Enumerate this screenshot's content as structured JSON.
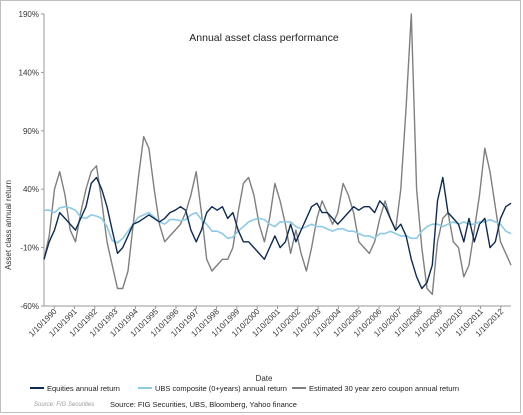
{
  "source_small": "Source: FIG Securities",
  "source_main": "Source: FIG Securities, UBS, Bloomberg, Yahoo finance",
  "chart_data": {
    "type": "line",
    "title": "Annual asset class performance",
    "xlabel": "Date",
    "ylabel": "Asset class annual return",
    "ylim": [
      -60,
      190
    ],
    "y_ticks": [
      "190%",
      "140%",
      "90%",
      "40%",
      "-10%",
      "-60%"
    ],
    "y_tick_values": [
      190,
      140,
      90,
      40,
      -10,
      -60
    ],
    "x_ticks": [
      "1/10/1990",
      "1/10/1991",
      "1/10/1992",
      "1/10/1993",
      "1/10/1994",
      "1/10/1995",
      "1/10/1996",
      "1/10/1997",
      "1/10/1998",
      "1/10/1999",
      "1/10/2000",
      "1/10/2001",
      "1/10/2002",
      "1/10/2003",
      "1/10/2004",
      "1/10/2005",
      "1/10/2006",
      "1/10/2007",
      "1/10/2008",
      "1/10/2009",
      "1/10/2010",
      "1/10/2011",
      "1/10/2012"
    ],
    "x_range": [
      1990.75,
      2013.0
    ],
    "grid": false,
    "legend_position": "bottom",
    "x": [
      1990.75,
      1991.0,
      1991.25,
      1991.5,
      1991.75,
      1992.0,
      1992.25,
      1992.5,
      1992.75,
      1993.0,
      1993.25,
      1993.5,
      1993.75,
      1994.0,
      1994.25,
      1994.5,
      1994.75,
      1995.0,
      1995.25,
      1995.5,
      1995.75,
      1996.0,
      1996.25,
      1996.5,
      1996.75,
      1997.0,
      1997.25,
      1997.5,
      1997.75,
      1998.0,
      1998.25,
      1998.5,
      1998.75,
      1999.0,
      1999.25,
      1999.5,
      1999.75,
      2000.0,
      2000.25,
      2000.5,
      2000.75,
      2001.0,
      2001.25,
      2001.5,
      2001.75,
      2002.0,
      2002.25,
      2002.5,
      2002.75,
      2003.0,
      2003.25,
      2003.5,
      2003.75,
      2004.0,
      2004.25,
      2004.5,
      2004.75,
      2005.0,
      2005.25,
      2005.5,
      2005.75,
      2006.0,
      2006.25,
      2006.5,
      2006.75,
      2007.0,
      2007.25,
      2007.5,
      2007.75,
      2008.0,
      2008.25,
      2008.5,
      2008.75,
      2009.0,
      2009.25,
      2009.5,
      2009.75,
      2010.0,
      2010.25,
      2010.5,
      2010.75,
      2011.0,
      2011.25,
      2011.5,
      2011.75,
      2012.0,
      2012.25,
      2012.5,
      2012.75,
      2013.0
    ],
    "series": [
      {
        "name": "Equities annual return",
        "color": "#0d2a52",
        "values": [
          -20,
          -5,
          5,
          20,
          15,
          10,
          5,
          15,
          25,
          45,
          50,
          40,
          25,
          5,
          -15,
          -10,
          0,
          10,
          12,
          15,
          18,
          15,
          12,
          15,
          20,
          22,
          25,
          22,
          5,
          -5,
          5,
          20,
          25,
          22,
          25,
          15,
          20,
          5,
          -5,
          -5,
          -10,
          -15,
          -20,
          -10,
          0,
          -10,
          -5,
          10,
          -5,
          5,
          15,
          25,
          28,
          20,
          20,
          15,
          10,
          15,
          20,
          25,
          22,
          25,
          25,
          20,
          30,
          25,
          15,
          5,
          10,
          0,
          -20,
          -35,
          -45,
          -40,
          -25,
          30,
          50,
          20,
          15,
          10,
          -5,
          15,
          -5,
          10,
          15,
          -10,
          -5,
          15,
          25,
          28
        ]
      },
      {
        "name": "UBS composite (0+years) annual return",
        "color": "#8ecae6",
        "values": [
          22,
          22,
          20,
          24,
          25,
          24,
          22,
          16,
          15,
          18,
          17,
          15,
          8,
          -4,
          -6,
          -2,
          4,
          10,
          16,
          18,
          20,
          16,
          12,
          10,
          14,
          14,
          13,
          14,
          18,
          20,
          14,
          10,
          4,
          4,
          2,
          -2,
          -1,
          4,
          8,
          12,
          14,
          15,
          14,
          10,
          8,
          12,
          12,
          12,
          8,
          6,
          8,
          10,
          8,
          8,
          6,
          4,
          6,
          6,
          4,
          4,
          2,
          0,
          0,
          -2,
          2,
          2,
          4,
          2,
          0,
          0,
          -2,
          -2,
          4,
          8,
          10,
          10,
          8,
          10,
          12,
          10,
          12,
          10,
          10,
          12,
          12,
          14,
          12,
          10,
          4,
          2
        ]
      },
      {
        "name": "Estimated 30 year zero coupon annual return",
        "color": "#7f7f7f",
        "values": [
          -20,
          0,
          40,
          55,
          35,
          5,
          -5,
          20,
          40,
          55,
          60,
          30,
          -5,
          -25,
          -45,
          -45,
          -30,
          10,
          50,
          85,
          75,
          40,
          10,
          -5,
          0,
          5,
          10,
          20,
          35,
          55,
          20,
          -20,
          -30,
          -25,
          -20,
          -20,
          -10,
          20,
          45,
          50,
          35,
          10,
          -5,
          15,
          45,
          30,
          10,
          -15,
          5,
          -15,
          -30,
          -10,
          15,
          30,
          20,
          10,
          20,
          45,
          35,
          20,
          -5,
          -10,
          -15,
          -5,
          15,
          30,
          15,
          5,
          40,
          110,
          190,
          40,
          -10,
          -45,
          -50,
          -5,
          15,
          20,
          -5,
          -10,
          -35,
          -25,
          5,
          35,
          75,
          55,
          25,
          -5,
          -15,
          -25
        ]
      }
    ]
  }
}
